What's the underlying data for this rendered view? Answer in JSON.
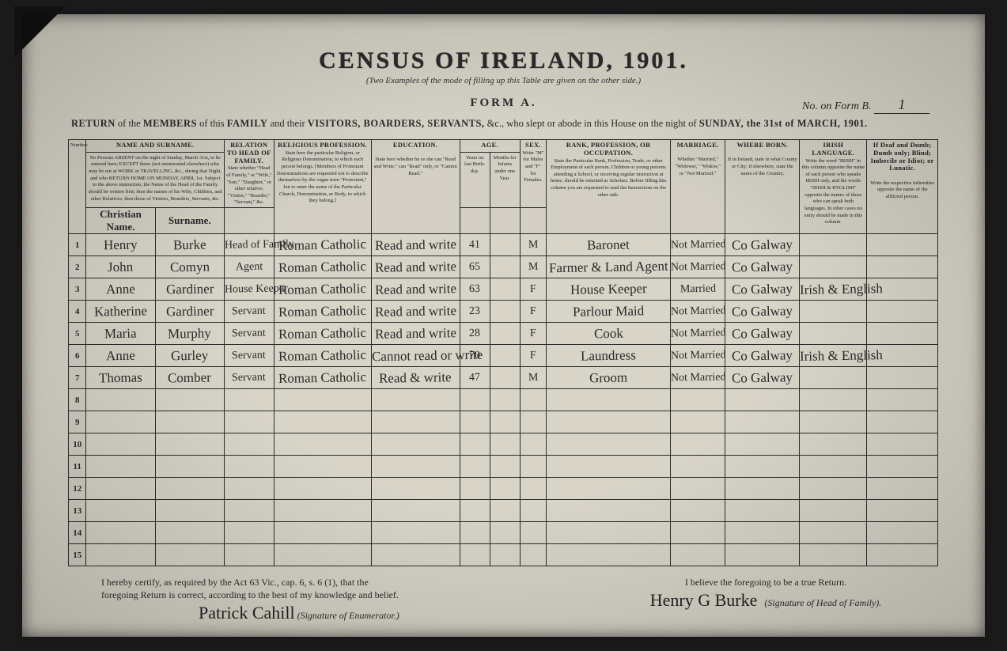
{
  "doc": {
    "title": "CENSUS OF IRELAND, 1901.",
    "subtitle": "(Two Examples of the mode of filling up this Table are given on the other side.)",
    "forma": "FORM A.",
    "formb_label": "No. on Form B.",
    "formb_value": "1",
    "return_text_1": "RETURN",
    "return_text_2": " of the ",
    "return_text_3": "MEMBERS",
    "return_text_4": " of this ",
    "return_text_5": "FAMILY",
    "return_text_6": " and their ",
    "return_text_7": "VISITORS, BOARDERS, SERVANTS,",
    "return_text_8": " &c., who slept or abode in this House on the night of ",
    "return_text_9": "SUNDAY, the 31st of MARCH, 1901."
  },
  "headers": {
    "name": "NAME and SURNAME.",
    "name_note": "No Persons ABSENT on the night of Sunday, March 31st, to be entered here; EXCEPT those (not enumerated elsewhere) who may be out at WORK or TRAVELLING, &c., during that Night, and who RETURN HOME ON MONDAY, APRIL 1st. Subject to the above instruction, the Name of the Head of the Family should be written first; then the names of his Wife, Children, and other Relatives; then those of Visitors, Boarders, Servants, &c.",
    "name_fn": "Christian Name.",
    "name_sn": "Surname.",
    "relation": "RELATION to Head of Family.",
    "relation_note": "State whether \"Head of Family,\" or \"Wife,\" \"Son,\" \"Daughter,\" or other relative; \"Visitor,\" \"Boarder,\" \"Servant,\" &c.",
    "religion": "RELIGIOUS PROFESSION.",
    "religion_note": "State here the particular Religion, or Religious Denomination, to which each person belongs. [Members of Protestant Denominations are requested not to describe themselves by the vague term \"Protestant,\" but to enter the name of the Particular Church, Denomination, or Body, to which they belong.]",
    "education": "EDUCATION.",
    "education_note": "State here whether he or she can \"Read and Write,\" can \"Read\" only, or \"Cannot Read.\"",
    "age": "AGE.",
    "age_y": "Years on last Birth-day.",
    "age_m": "Months for Infants under one Year.",
    "sex": "SEX.",
    "sex_note": "Write \"M\" for Males and \"F\" for Females.",
    "occupation": "RANK, PROFESSION, OR OCCUPATION.",
    "occupation_note": "State the Particular Rank, Profession, Trade, or other Employment of each person. Children or young persons attending a School, or receiving regular instruction at home, should be returned as Scholars. Before filling this column you are requested to read the Instructions on the other side.",
    "marriage": "MARRIAGE.",
    "marriage_note": "Whether \"Married,\" \"Widower,\" \"Widow,\" or \"Not Married.\"",
    "born": "WHERE BORN.",
    "born_note": "If in Ireland, state in what County or City; if elsewhere, state the name of the Country.",
    "irish": "IRISH LANGUAGE.",
    "irish_note": "Write the word \"IRISH\" in this column opposite the name of each person who speaks IRISH only, and the words \"IRISH & ENGLISH\" opposite the names of those who can speak both languages. In other cases no entry should be made in this column.",
    "infirm": "If Deaf and Dumb; Dumb only; Blind; Imbecile or Idiot; or Lunatic.",
    "infirm_note": "Write the respective infirmities opposite the name of the afflicted person."
  },
  "rows": [
    {
      "n": "1",
      "fn": "Henry",
      "sn": "Burke",
      "rel": "Head of Family",
      "relg": "Roman Catholic",
      "edu": "Read and write",
      "agey": "41",
      "agem": "",
      "sex": "M",
      "occ": "Baronet",
      "mar": "Not Married",
      "born": "Co Galway",
      "irish": "",
      "inf": ""
    },
    {
      "n": "2",
      "fn": "John",
      "sn": "Comyn",
      "rel": "Agent",
      "relg": "Roman Catholic",
      "edu": "Read and write",
      "agey": "65",
      "agem": "",
      "sex": "M",
      "occ": "Farmer & Land Agent",
      "mar": "Not Married",
      "born": "Co Galway",
      "irish": "",
      "inf": ""
    },
    {
      "n": "3",
      "fn": "Anne",
      "sn": "Gardiner",
      "rel": "House Keeper",
      "relg": "Roman Catholic",
      "edu": "Read and write",
      "agey": "63",
      "agem": "",
      "sex": "F",
      "occ": "House Keeper",
      "mar": "Married",
      "born": "Co Galway",
      "irish": "Irish & English",
      "inf": ""
    },
    {
      "n": "4",
      "fn": "Katherine",
      "sn": "Gardiner",
      "rel": "Servant",
      "relg": "Roman Catholic",
      "edu": "Read and write",
      "agey": "23",
      "agem": "",
      "sex": "F",
      "occ": "Parlour Maid",
      "mar": "Not Married",
      "born": "Co Galway",
      "irish": "",
      "inf": ""
    },
    {
      "n": "5",
      "fn": "Maria",
      "sn": "Murphy",
      "rel": "Servant",
      "relg": "Roman Catholic",
      "edu": "Read and write",
      "agey": "28",
      "agem": "",
      "sex": "F",
      "occ": "Cook",
      "mar": "Not Married",
      "born": "Co Galway",
      "irish": "",
      "inf": ""
    },
    {
      "n": "6",
      "fn": "Anne",
      "sn": "Gurley",
      "rel": "Servant",
      "relg": "Roman Catholic",
      "edu": "Cannot read or write",
      "agey": "70",
      "agem": "",
      "sex": "F",
      "occ": "Laundress",
      "mar": "Not Married",
      "born": "Co Galway",
      "irish": "Irish & English",
      "inf": ""
    },
    {
      "n": "7",
      "fn": "Thomas",
      "sn": "Comber",
      "rel": "Servant",
      "relg": "Roman Catholic",
      "edu": "Read & write",
      "agey": "47",
      "agem": "",
      "sex": "M",
      "occ": "Groom",
      "mar": "Not Married",
      "born": "Co Galway",
      "irish": "",
      "inf": ""
    },
    {
      "n": "8"
    },
    {
      "n": "9"
    },
    {
      "n": "10"
    },
    {
      "n": "11"
    },
    {
      "n": "12"
    },
    {
      "n": "13"
    },
    {
      "n": "14"
    },
    {
      "n": "15"
    }
  ],
  "cert": {
    "left1": "I hereby certify, as required by the Act 63 Vic., cap. 6, s. 6 (1), that the",
    "left2": "foregoing Return is correct, according to the best of my knowledge and belief.",
    "enum_sig": "Patrick Cahill",
    "enum_label": "(Signature of Enumerator.)",
    "right1": "I believe the foregoing to be a true Return.",
    "head_sig": "Henry G Burke",
    "head_label": "(Signature of Head of Family)."
  },
  "colors": {
    "paper": "#d8d4c8",
    "ink": "#2b2b2b",
    "bg": "#1a1a1a"
  }
}
